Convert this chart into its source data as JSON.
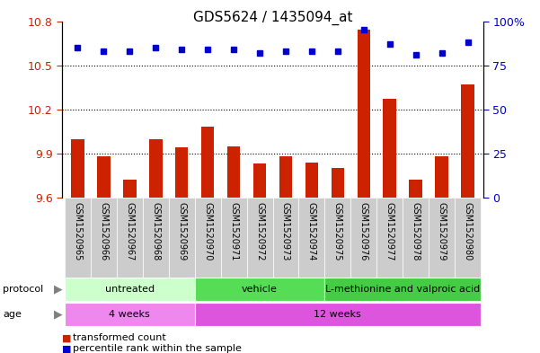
{
  "title": "GDS5624 / 1435094_at",
  "samples": [
    "GSM1520965",
    "GSM1520966",
    "GSM1520967",
    "GSM1520968",
    "GSM1520969",
    "GSM1520970",
    "GSM1520971",
    "GSM1520972",
    "GSM1520973",
    "GSM1520974",
    "GSM1520975",
    "GSM1520976",
    "GSM1520977",
    "GSM1520978",
    "GSM1520979",
    "GSM1520980"
  ],
  "transformed_count": [
    10.0,
    9.88,
    9.72,
    10.0,
    9.94,
    10.08,
    9.95,
    9.83,
    9.88,
    9.84,
    9.8,
    10.74,
    10.27,
    9.72,
    9.88,
    10.37
  ],
  "percentile_rank": [
    85,
    83,
    83,
    85,
    84,
    84,
    84,
    82,
    83,
    83,
    83,
    95,
    87,
    81,
    82,
    88
  ],
  "ylim_left": [
    9.6,
    10.8
  ],
  "ylim_right": [
    0,
    100
  ],
  "yticks_left": [
    9.6,
    9.9,
    10.2,
    10.5,
    10.8
  ],
  "yticks_right": [
    0,
    25,
    50,
    75,
    100
  ],
  "ytick_labels_left": [
    "9.6",
    "9.9",
    "10.2",
    "10.5",
    "10.8"
  ],
  "ytick_labels_right": [
    "0",
    "25",
    "50",
    "75",
    "100%"
  ],
  "bar_color": "#cc2200",
  "dot_color": "#0000cc",
  "proto_groups": [
    {
      "label": "untreated",
      "start": 0,
      "end": 4,
      "color": "#ccffcc"
    },
    {
      "label": "vehicle",
      "start": 5,
      "end": 9,
      "color": "#55dd55"
    },
    {
      "label": "L-methionine and valproic acid",
      "start": 10,
      "end": 15,
      "color": "#44cc44"
    }
  ],
  "age_groups": [
    {
      "label": "4 weeks",
      "start": 0,
      "end": 4,
      "color": "#ee88ee"
    },
    {
      "label": "12 weeks",
      "start": 5,
      "end": 15,
      "color": "#dd55dd"
    }
  ],
  "bg_color": "#ffffff",
  "plot_bg_color": "#ffffff",
  "label_bg_color": "#cccccc",
  "bar_width": 0.5
}
